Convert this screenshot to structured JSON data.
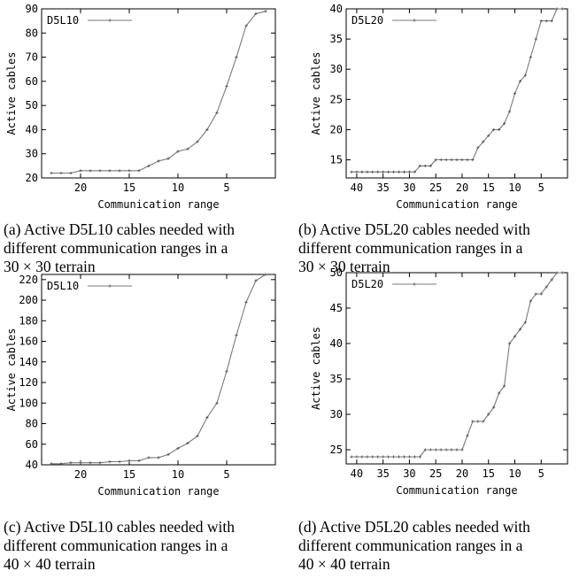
{
  "figures": [
    {
      "caption_lines": [
        "(a) Active D5L10 cables needed with",
        "different communication ranges in a",
        "30 × 30 terrain"
      ]
    },
    {
      "caption_lines": [
        "(b) Active D5L20 cables needed with",
        "different communication ranges in a",
        "30 × 30 terrain"
      ]
    },
    {
      "caption_lines": [
        "(c) Active D5L10 cables needed with",
        "different communication ranges in a",
        "40 × 40 terrain"
      ]
    },
    {
      "caption_lines": [
        "(d) Active D5L20 cables needed with",
        "different communication ranges in a",
        "40 × 40 terrain"
      ]
    }
  ],
  "chart_data": [
    {
      "type": "line",
      "xlabel": "Communication range",
      "ylabel": "Active cables",
      "xlim": [
        24,
        0
      ],
      "ylim": [
        20,
        90
      ],
      "xticks": [
        20,
        15,
        10,
        5
      ],
      "yticks": [
        20,
        30,
        40,
        50,
        60,
        70,
        80,
        90
      ],
      "legend_position": "top-left",
      "grid": false,
      "series": [
        {
          "name": "D5L10",
          "x": [
            23,
            22,
            21,
            20,
            19,
            18,
            17,
            16,
            15,
            14,
            13,
            12,
            11,
            10,
            9,
            8,
            7,
            6,
            5,
            4,
            3,
            2,
            1
          ],
          "y": [
            22,
            22,
            22,
            23,
            23,
            23,
            23,
            23,
            23,
            23,
            25,
            27,
            28,
            31,
            32,
            35,
            40,
            47,
            58,
            70,
            83,
            88,
            89
          ]
        }
      ]
    },
    {
      "type": "line",
      "xlabel": "Communication range",
      "ylabel": "Active cables",
      "xlim": [
        42,
        0
      ],
      "ylim": [
        12,
        40
      ],
      "xticks": [
        40,
        35,
        30,
        25,
        20,
        15,
        10,
        5
      ],
      "yticks": [
        15,
        20,
        25,
        30,
        35,
        40
      ],
      "legend_position": "top-left",
      "grid": false,
      "series": [
        {
          "name": "D5L20",
          "x": [
            41,
            40,
            39,
            38,
            37,
            36,
            35,
            34,
            33,
            32,
            31,
            30,
            29,
            28,
            27,
            26,
            25,
            24,
            23,
            22,
            21,
            20,
            19,
            18,
            17,
            16,
            15,
            14,
            13,
            12,
            11,
            10,
            9,
            8,
            7,
            6,
            5,
            4,
            3,
            2,
            1
          ],
          "y": [
            13,
            13,
            13,
            13,
            13,
            13,
            13,
            13,
            13,
            13,
            13,
            13,
            13,
            14,
            14,
            14,
            15,
            15,
            15,
            15,
            15,
            15,
            15,
            15,
            17,
            18,
            19,
            20,
            20,
            21,
            23,
            26,
            28,
            29,
            32,
            35,
            38,
            38,
            38,
            40,
            40
          ]
        }
      ]
    },
    {
      "type": "line",
      "xlabel": "Communication range",
      "ylabel": "Active cables",
      "xlim": [
        24,
        0
      ],
      "ylim": [
        40,
        225
      ],
      "xticks": [
        20,
        15,
        10,
        5
      ],
      "yticks": [
        40,
        60,
        80,
        100,
        120,
        140,
        160,
        180,
        200,
        220
      ],
      "legend_position": "top-left",
      "grid": false,
      "series": [
        {
          "name": "D5L10",
          "x": [
            23,
            22,
            21,
            20,
            19,
            18,
            17,
            16,
            15,
            14,
            13,
            12,
            11,
            10,
            9,
            8,
            7,
            6,
            5,
            4,
            3,
            2,
            1
          ],
          "y": [
            41,
            41,
            42,
            42,
            42,
            42,
            43,
            43,
            44,
            44,
            47,
            47,
            50,
            56,
            61,
            68,
            86,
            100,
            131,
            166,
            198,
            219,
            225
          ]
        }
      ]
    },
    {
      "type": "line",
      "xlabel": "Communication range",
      "ylabel": "Active cables",
      "xlim": [
        42,
        0
      ],
      "ylim": [
        23,
        50
      ],
      "xticks": [
        40,
        35,
        30,
        25,
        20,
        15,
        10,
        5
      ],
      "yticks": [
        25,
        30,
        35,
        40,
        45,
        50
      ],
      "legend_position": "top-left",
      "grid": false,
      "series": [
        {
          "name": "D5L20",
          "x": [
            41,
            40,
            39,
            38,
            37,
            36,
            35,
            34,
            33,
            32,
            31,
            30,
            29,
            28,
            27,
            26,
            25,
            24,
            23,
            22,
            21,
            20,
            19,
            18,
            17,
            16,
            15,
            14,
            13,
            12,
            11,
            10,
            9,
            8,
            7,
            6,
            5,
            4,
            3,
            2,
            1
          ],
          "y": [
            24,
            24,
            24,
            24,
            24,
            24,
            24,
            24,
            24,
            24,
            24,
            24,
            24,
            24,
            25,
            25,
            25,
            25,
            25,
            25,
            25,
            25,
            27,
            29,
            29,
            29,
            30,
            31,
            33,
            34,
            40,
            41,
            42,
            43,
            46,
            47,
            47,
            48,
            49,
            50,
            50
          ]
        }
      ]
    }
  ]
}
